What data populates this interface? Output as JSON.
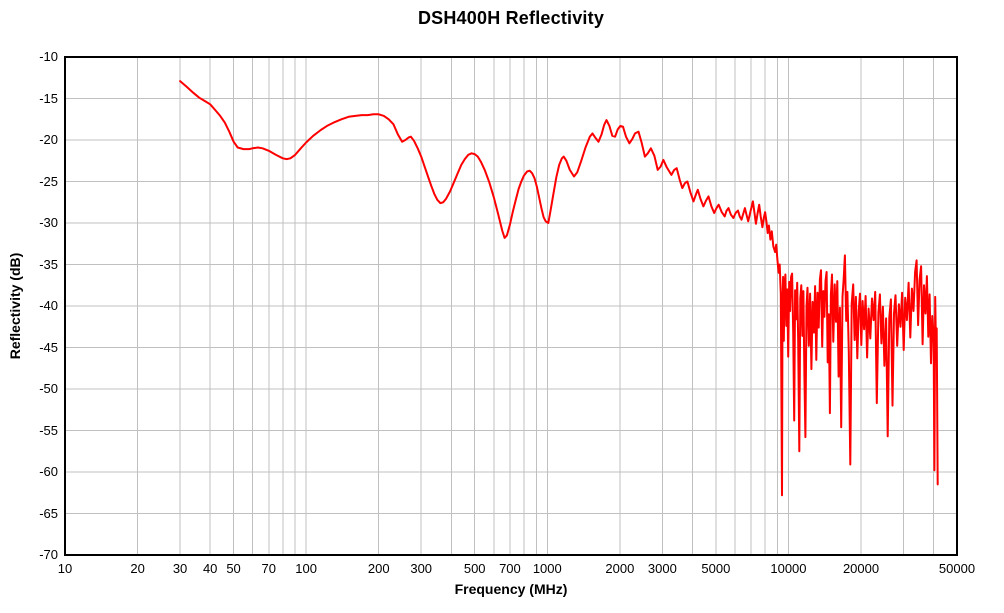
{
  "title": "DSH400H Reflectivity",
  "chart_data": {
    "type": "line",
    "title": "DSH400H Reflectivity",
    "xlabel": "Frequency (MHz)",
    "ylabel": "Reflectivity (dB)",
    "x_scale": "log",
    "xlim": [
      10,
      50000
    ],
    "ylim": [
      -70,
      -10
    ],
    "x_tick_labels": [
      10,
      20,
      30,
      40,
      50,
      70,
      100,
      200,
      300,
      500,
      700,
      1000,
      2000,
      3000,
      5000,
      10000,
      20000,
      50000
    ],
    "y_ticks": [
      -10,
      -15,
      -20,
      -25,
      -30,
      -35,
      -40,
      -45,
      -50,
      -55,
      -60,
      -65,
      -70
    ],
    "grid": "on",
    "legend": "none",
    "colors": {
      "line": "#ff0000",
      "grid": "#c0c0c0",
      "axis": "#000000",
      "background": "#ffffff",
      "text": "#000000"
    },
    "series": [
      {
        "name": "DSH400H reflectivity",
        "points": [
          [
            30,
            -12.9
          ],
          [
            32,
            -13.6
          ],
          [
            34,
            -14.3
          ],
          [
            36,
            -14.9
          ],
          [
            38,
            -15.3
          ],
          [
            40,
            -15.7
          ],
          [
            42,
            -16.4
          ],
          [
            44,
            -17.1
          ],
          [
            46,
            -17.9
          ],
          [
            48,
            -19.0
          ],
          [
            50,
            -20.2
          ],
          [
            52,
            -20.9
          ],
          [
            55,
            -21.1
          ],
          [
            58,
            -21.1
          ],
          [
            60,
            -21.0
          ],
          [
            63,
            -20.9
          ],
          [
            66,
            -21.0
          ],
          [
            70,
            -21.3
          ],
          [
            75,
            -21.8
          ],
          [
            80,
            -22.2
          ],
          [
            83,
            -22.3
          ],
          [
            86,
            -22.2
          ],
          [
            90,
            -21.8
          ],
          [
            95,
            -21.0
          ],
          [
            100,
            -20.3
          ],
          [
            107,
            -19.5
          ],
          [
            115,
            -18.8
          ],
          [
            122,
            -18.3
          ],
          [
            130,
            -17.9
          ],
          [
            140,
            -17.5
          ],
          [
            150,
            -17.2
          ],
          [
            160,
            -17.1
          ],
          [
            170,
            -17.0
          ],
          [
            180,
            -17.0
          ],
          [
            190,
            -16.9
          ],
          [
            200,
            -16.9
          ],
          [
            210,
            -17.1
          ],
          [
            220,
            -17.5
          ],
          [
            230,
            -18.1
          ],
          [
            240,
            -19.3
          ],
          [
            250,
            -20.2
          ],
          [
            258,
            -20.0
          ],
          [
            266,
            -19.7
          ],
          [
            272,
            -19.6
          ],
          [
            280,
            -20.1
          ],
          [
            290,
            -21.0
          ],
          [
            300,
            -22.0
          ],
          [
            310,
            -23.2
          ],
          [
            320,
            -24.4
          ],
          [
            330,
            -25.5
          ],
          [
            340,
            -26.5
          ],
          [
            350,
            -27.2
          ],
          [
            360,
            -27.6
          ],
          [
            370,
            -27.5
          ],
          [
            380,
            -27.1
          ],
          [
            395,
            -26.2
          ],
          [
            410,
            -25.1
          ],
          [
            425,
            -24.0
          ],
          [
            440,
            -23.0
          ],
          [
            455,
            -22.3
          ],
          [
            470,
            -21.8
          ],
          [
            485,
            -21.6
          ],
          [
            500,
            -21.7
          ],
          [
            515,
            -22.0
          ],
          [
            530,
            -22.6
          ],
          [
            550,
            -23.6
          ],
          [
            575,
            -25.1
          ],
          [
            600,
            -26.9
          ],
          [
            625,
            -28.9
          ],
          [
            650,
            -30.9
          ],
          [
            665,
            -31.8
          ],
          [
            680,
            -31.5
          ],
          [
            700,
            -30.2
          ],
          [
            720,
            -28.6
          ],
          [
            740,
            -27.2
          ],
          [
            760,
            -25.9
          ],
          [
            780,
            -25.0
          ],
          [
            800,
            -24.3
          ],
          [
            825,
            -23.8
          ],
          [
            845,
            -23.7
          ],
          [
            865,
            -24.0
          ],
          [
            885,
            -24.6
          ],
          [
            905,
            -25.6
          ],
          [
            925,
            -26.9
          ],
          [
            945,
            -28.2
          ],
          [
            965,
            -29.3
          ],
          [
            985,
            -29.8
          ],
          [
            1010,
            -30.0
          ],
          [
            1030,
            -28.6
          ],
          [
            1060,
            -26.5
          ],
          [
            1090,
            -24.5
          ],
          [
            1120,
            -23.0
          ],
          [
            1150,
            -22.2
          ],
          [
            1170,
            -22.0
          ],
          [
            1200,
            -22.5
          ],
          [
            1240,
            -23.6
          ],
          [
            1290,
            -24.4
          ],
          [
            1330,
            -23.9
          ],
          [
            1380,
            -22.6
          ],
          [
            1440,
            -20.9
          ],
          [
            1500,
            -19.6
          ],
          [
            1540,
            -19.2
          ],
          [
            1580,
            -19.7
          ],
          [
            1630,
            -20.2
          ],
          [
            1680,
            -19.3
          ],
          [
            1720,
            -18.2
          ],
          [
            1760,
            -17.6
          ],
          [
            1810,
            -18.3
          ],
          [
            1860,
            -19.5
          ],
          [
            1910,
            -19.6
          ],
          [
            1960,
            -18.7
          ],
          [
            2010,
            -18.3
          ],
          [
            2060,
            -18.4
          ],
          [
            2120,
            -19.6
          ],
          [
            2190,
            -20.4
          ],
          [
            2250,
            -19.9
          ],
          [
            2310,
            -19.2
          ],
          [
            2390,
            -19.0
          ],
          [
            2460,
            -20.3
          ],
          [
            2540,
            -22.0
          ],
          [
            2610,
            -21.6
          ],
          [
            2690,
            -21.0
          ],
          [
            2780,
            -21.9
          ],
          [
            2870,
            -23.6
          ],
          [
            2950,
            -23.2
          ],
          [
            3030,
            -22.4
          ],
          [
            3130,
            -23.3
          ],
          [
            3270,
            -24.2
          ],
          [
            3360,
            -23.6
          ],
          [
            3440,
            -23.4
          ],
          [
            3540,
            -24.8
          ],
          [
            3630,
            -25.8
          ],
          [
            3720,
            -25.2
          ],
          [
            3810,
            -25.0
          ],
          [
            3920,
            -26.3
          ],
          [
            4040,
            -27.4
          ],
          [
            4130,
            -26.6
          ],
          [
            4210,
            -26.0
          ],
          [
            4320,
            -27.1
          ],
          [
            4440,
            -28.0
          ],
          [
            4550,
            -27.3
          ],
          [
            4660,
            -26.8
          ],
          [
            4790,
            -28.0
          ],
          [
            4920,
            -28.8
          ],
          [
            5030,
            -28.2
          ],
          [
            5140,
            -27.8
          ],
          [
            5290,
            -28.7
          ],
          [
            5440,
            -29.2
          ],
          [
            5540,
            -28.5
          ],
          [
            5640,
            -28.2
          ],
          [
            5770,
            -29.0
          ],
          [
            5910,
            -29.4
          ],
          [
            6040,
            -28.8
          ],
          [
            6180,
            -28.5
          ],
          [
            6280,
            -29.2
          ],
          [
            6390,
            -29.6
          ],
          [
            6490,
            -28.9
          ],
          [
            6600,
            -28.2
          ],
          [
            6700,
            -29.0
          ],
          [
            6810,
            -29.8
          ],
          [
            6960,
            -28.6
          ],
          [
            7120,
            -27.4
          ],
          [
            7230,
            -28.8
          ],
          [
            7330,
            -30.1
          ],
          [
            7440,
            -28.9
          ],
          [
            7560,
            -27.8
          ],
          [
            7680,
            -29.3
          ],
          [
            7800,
            -30.5
          ],
          [
            7900,
            -29.4
          ],
          [
            8000,
            -28.7
          ],
          [
            8100,
            -29.8
          ],
          [
            8200,
            -31.2
          ],
          [
            8300,
            -30.3
          ],
          [
            8420,
            -32.0
          ],
          [
            8530,
            -31.0
          ],
          [
            8650,
            -32.8
          ],
          [
            8800,
            -33.5
          ],
          [
            8900,
            -32.6
          ],
          [
            9000,
            -34.4
          ],
          [
            9100,
            -36.0
          ],
          [
            9200,
            -35.0
          ],
          [
            9300,
            -38.5
          ],
          [
            9400,
            -62.8
          ],
          [
            9450,
            -40.0
          ],
          [
            9500,
            -36.5
          ],
          [
            9570,
            -44.2
          ],
          [
            9640,
            -37.6
          ],
          [
            9710,
            -36.2
          ],
          [
            9800,
            -42.4
          ],
          [
            9890,
            -38.0
          ],
          [
            9980,
            -46.1
          ],
          [
            10070,
            -37.1
          ],
          [
            10160,
            -40.6
          ],
          [
            10260,
            -36.5
          ],
          [
            10360,
            -36.1
          ],
          [
            10460,
            -43.2
          ],
          [
            10560,
            -53.8
          ],
          [
            10660,
            -38.1
          ],
          [
            10760,
            -41.6
          ],
          [
            10870,
            -37.2
          ],
          [
            10980,
            -44.3
          ],
          [
            11090,
            -57.5
          ],
          [
            11200,
            -39.1
          ],
          [
            11310,
            -37.5
          ],
          [
            11420,
            -43.6
          ],
          [
            11530,
            -38.2
          ],
          [
            11650,
            -48.3
          ],
          [
            11760,
            -55.8
          ],
          [
            11880,
            -40.1
          ],
          [
            12000,
            -37.8
          ],
          [
            12150,
            -44.8
          ],
          [
            12300,
            -38.5
          ],
          [
            12450,
            -47.6
          ],
          [
            12600,
            -39.5
          ],
          [
            12750,
            -43.2
          ],
          [
            12900,
            -37.6
          ],
          [
            13050,
            -46.5
          ],
          [
            13200,
            -38.4
          ],
          [
            13350,
            -42.6
          ],
          [
            13500,
            -36.8
          ],
          [
            13650,
            -35.7
          ],
          [
            13800,
            -44.9
          ],
          [
            13950,
            -38.2
          ],
          [
            14100,
            -41.3
          ],
          [
            14250,
            -37.0
          ],
          [
            14400,
            -35.9
          ],
          [
            14550,
            -46.8
          ],
          [
            14700,
            -41.0
          ],
          [
            14850,
            -52.9
          ],
          [
            15000,
            -38.6
          ],
          [
            15150,
            -36.2
          ],
          [
            15350,
            -44.3
          ],
          [
            15550,
            -37.4
          ],
          [
            15750,
            -41.9
          ],
          [
            15950,
            -37.0
          ],
          [
            16150,
            -48.5
          ],
          [
            16350,
            -40.2
          ],
          [
            16550,
            -54.6
          ],
          [
            16750,
            -38.9
          ],
          [
            16950,
            -36.7
          ],
          [
            17150,
            -33.9
          ],
          [
            17350,
            -41.8
          ],
          [
            17550,
            -38.3
          ],
          [
            17800,
            -45.6
          ],
          [
            18050,
            -59.1
          ],
          [
            18300,
            -39.7
          ],
          [
            18550,
            -37.4
          ],
          [
            18800,
            -44.1
          ],
          [
            19050,
            -38.9
          ],
          [
            19300,
            -46.3
          ],
          [
            19550,
            -40.6
          ],
          [
            19800,
            -38.5
          ],
          [
            20050,
            -44.7
          ],
          [
            20300,
            -39.4
          ],
          [
            20600,
            -42.8
          ],
          [
            20900,
            -38.8
          ],
          [
            21200,
            -46.2
          ],
          [
            21500,
            -40.3
          ],
          [
            21850,
            -43.9
          ],
          [
            22200,
            -39.1
          ],
          [
            22550,
            -41.7
          ],
          [
            22900,
            -38.3
          ],
          [
            23250,
            -51.7
          ],
          [
            23600,
            -40.8
          ],
          [
            23950,
            -38.6
          ],
          [
            24300,
            -44.5
          ],
          [
            24650,
            -40.1
          ],
          [
            25000,
            -47.2
          ],
          [
            25400,
            -41.5
          ],
          [
            25800,
            -55.7
          ],
          [
            26200,
            -41.4
          ],
          [
            26600,
            -39.2
          ],
          [
            27000,
            -52.0
          ],
          [
            27400,
            -40.9
          ],
          [
            27800,
            -38.7
          ],
          [
            28250,
            -44.8
          ],
          [
            28700,
            -39.8
          ],
          [
            29150,
            -42.5
          ],
          [
            29600,
            -38.4
          ],
          [
            30050,
            -45.3
          ],
          [
            30500,
            -39.0
          ],
          [
            31000,
            -41.7
          ],
          [
            31500,
            -37.2
          ],
          [
            32000,
            -43.8
          ],
          [
            32500,
            -37.9
          ],
          [
            33000,
            -40.6
          ],
          [
            33500,
            -35.9
          ],
          [
            34000,
            -34.5
          ],
          [
            34500,
            -42.3
          ],
          [
            35000,
            -36.8
          ],
          [
            35500,
            -35.2
          ],
          [
            36000,
            -44.6
          ],
          [
            36500,
            -37.5
          ],
          [
            37000,
            -40.9
          ],
          [
            37500,
            -36.4
          ],
          [
            38000,
            -43.7
          ],
          [
            38500,
            -38.6
          ],
          [
            39000,
            -46.9
          ],
          [
            39500,
            -41.2
          ],
          [
            40000,
            -43.5
          ],
          [
            40300,
            -59.8
          ],
          [
            40600,
            -38.9
          ],
          [
            40900,
            -45.2
          ],
          [
            41200,
            -42.7
          ],
          [
            41600,
            -61.5
          ]
        ]
      }
    ]
  }
}
